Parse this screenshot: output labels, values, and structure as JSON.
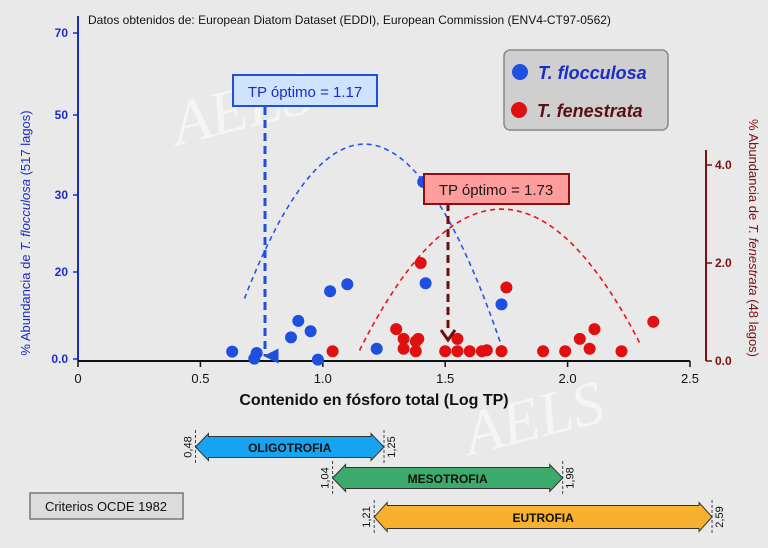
{
  "source": "Datos obtenidos de: European Diatom Dataset (EDDI), European Commission (ENV4-CT97-0562)",
  "watermark": "AELS",
  "legend": {
    "items": [
      {
        "label": "T. flocculosa",
        "color": "#1f4fe0"
      },
      {
        "label": "T. fenestrata",
        "color": "#e01010"
      }
    ]
  },
  "optima": {
    "flocculosa": {
      "label": "TP óptimo = 1.17",
      "value": 1.17
    },
    "fenestrata": {
      "label": "TP óptimo = 1.73",
      "value": 1.73
    }
  },
  "criteria_label": "Criterios OCDE 1982",
  "trophic_ranges": [
    {
      "label": "OLIGOTROFIA",
      "min": 0.48,
      "max": 1.25,
      "min_label": "0,48",
      "max_label": "1,25",
      "color": "#16a4f0"
    },
    {
      "label": "MESOTROFIA",
      "min": 1.04,
      "max": 1.98,
      "min_label": "1,04",
      "max_label": "1,98",
      "color": "#3caa6a"
    },
    {
      "label": "EUTROFIA",
      "min": 1.21,
      "max": 2.59,
      "min_label": "1,21",
      "max_label": "2,59",
      "color": "#f8b030"
    }
  ],
  "chart_data": {
    "type": "scatter",
    "xlabel": "Contenido en fósforo total (Log TP)",
    "xlim": [
      0,
      2.5
    ],
    "x_ticks": [
      "0",
      "0.5",
      "1.0",
      "1.5",
      "2.0",
      "2.5"
    ],
    "x_tick_values": [
      0,
      0.5,
      1.0,
      1.5,
      2.0,
      2.5
    ],
    "y_left": {
      "label_prefix": "% Abundancia de ",
      "label_species": "T. flocculosa",
      "label_suffix": " (517 lagos)",
      "lim": [
        0,
        70
      ],
      "ticks": [
        "0.0",
        "20",
        "30",
        "50",
        "70"
      ],
      "tick_positions": [
        0,
        11,
        21,
        31,
        41
      ]
    },
    "y_right": {
      "label_prefix": "% Abundancia de ",
      "label_species": "T. fenestrata",
      "label_suffix": " (48 lagos)",
      "lim": [
        0,
        4.4
      ],
      "ticks": [
        "0.0",
        "2.0",
        "4.0"
      ],
      "tick_values": [
        0,
        2,
        4
      ]
    },
    "grid": false,
    "legend_position": "top-right",
    "series": [
      {
        "name": "T. flocculosa",
        "color": "#1f4fe0",
        "axis": "left",
        "points": [
          [
            0.63,
            2.0
          ],
          [
            0.72,
            0.5
          ],
          [
            0.73,
            1.7
          ],
          [
            0.87,
            5.0
          ],
          [
            0.9,
            8.5
          ],
          [
            0.95,
            6.3
          ],
          [
            0.98,
            0.3
          ],
          [
            1.03,
            14.8
          ],
          [
            1.1,
            16.3
          ],
          [
            1.22,
            2.6
          ],
          [
            1.41,
            38.0
          ],
          [
            1.42,
            16.5
          ],
          [
            1.73,
            12.0
          ]
        ]
      },
      {
        "name": "T. fenestrata",
        "color": "#e01010",
        "axis": "right",
        "points": [
          [
            1.04,
            0.2
          ],
          [
            1.3,
            0.65
          ],
          [
            1.33,
            0.25
          ],
          [
            1.33,
            0.45
          ],
          [
            1.38,
            0.2
          ],
          [
            1.38,
            0.4
          ],
          [
            1.39,
            0.45
          ],
          [
            1.4,
            2.0
          ],
          [
            1.5,
            0.2
          ],
          [
            1.55,
            0.45
          ],
          [
            1.55,
            0.2
          ],
          [
            1.6,
            0.2
          ],
          [
            1.65,
            0.2
          ],
          [
            1.67,
            0.22
          ],
          [
            1.73,
            0.2
          ],
          [
            1.75,
            1.5
          ],
          [
            1.9,
            0.2
          ],
          [
            1.99,
            0.2
          ],
          [
            2.05,
            0.45
          ],
          [
            2.09,
            0.25
          ],
          [
            2.11,
            0.65
          ],
          [
            2.22,
            0.2
          ],
          [
            2.35,
            0.8
          ]
        ]
      }
    ],
    "fit_curves": [
      {
        "color": "#2255ee",
        "axis": "left",
        "x": [
          0.68,
          1.73
        ],
        "optimum": 1.17,
        "peak": 46
      },
      {
        "color": "#ee1111",
        "axis": "right",
        "x": [
          1.15,
          2.3
        ],
        "optimum": 1.73,
        "peak": 3.1
      }
    ]
  }
}
